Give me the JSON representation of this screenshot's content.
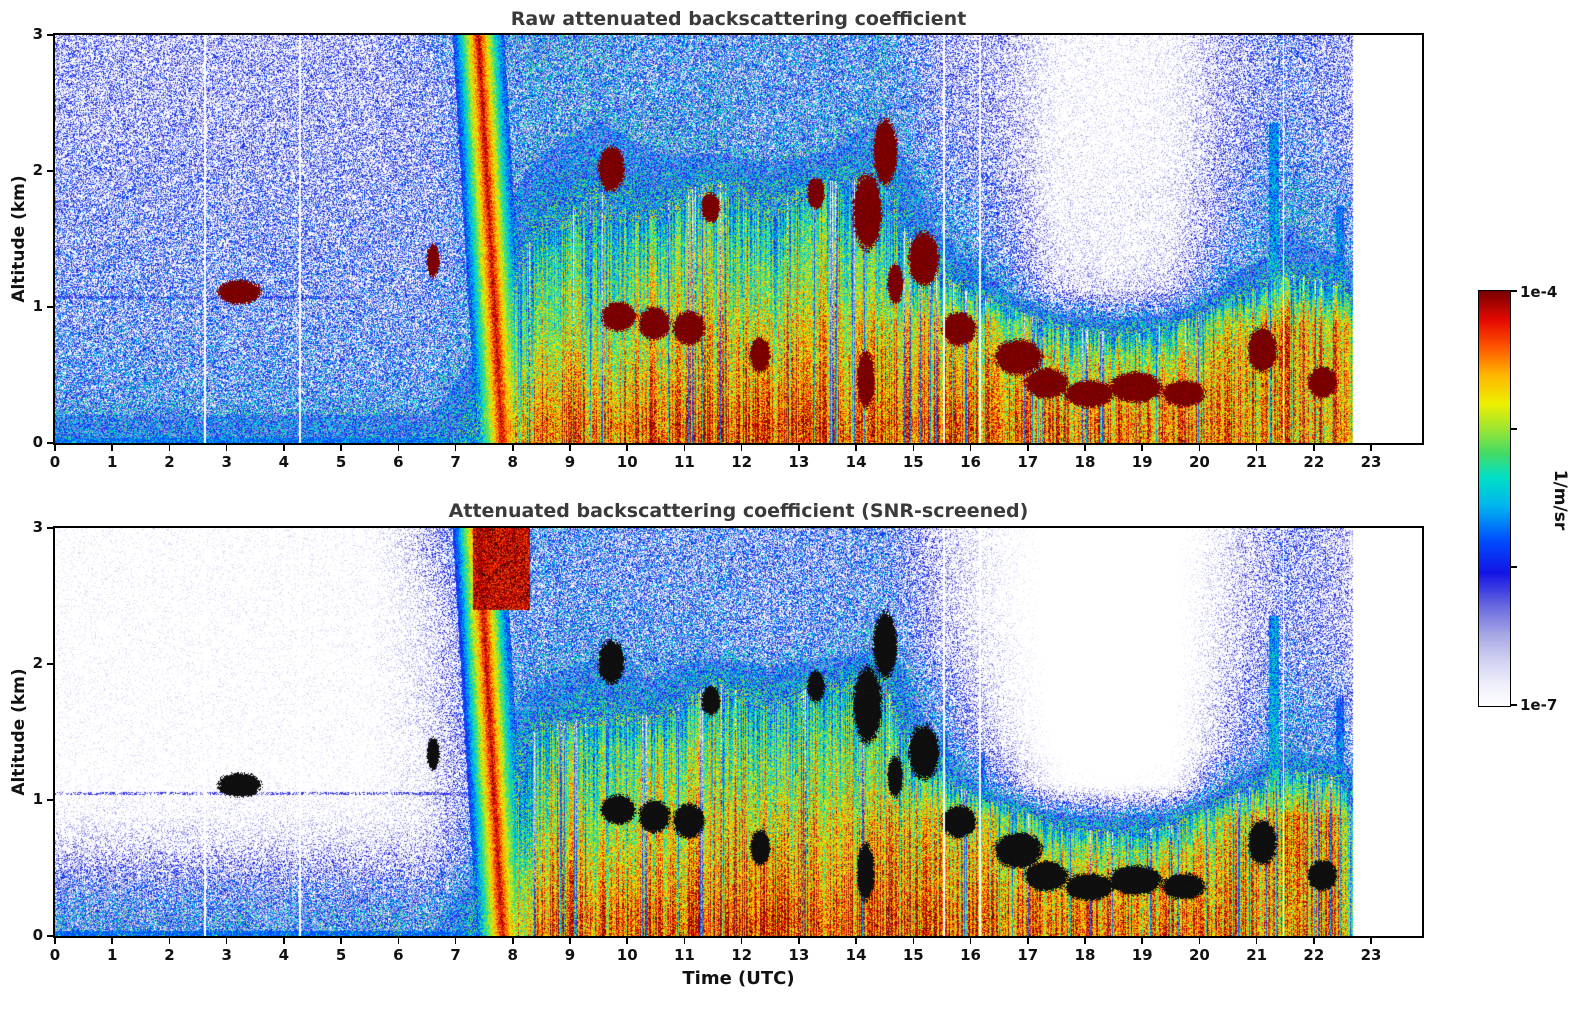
{
  "figure": {
    "background": "#ffffff",
    "text_color": "#1a1a1a",
    "title_color": "#3a3a3a"
  },
  "panels": [
    {
      "title": "Raw attenuated backscattering coefficient",
      "ylabel": "Altitude (km)",
      "xlabel": "",
      "x_ticks": [
        0,
        1,
        2,
        3,
        4,
        5,
        6,
        7,
        8,
        9,
        10,
        11,
        12,
        13,
        14,
        15,
        16,
        17,
        18,
        19,
        20,
        21,
        22,
        23
      ],
      "y_ticks": [
        0,
        1,
        2,
        3
      ]
    },
    {
      "title": "Attenuated backscattering coefficient (SNR-screened)",
      "ylabel": "Altitude (km)",
      "xlabel": "Time (UTC)",
      "x_ticks": [
        0,
        1,
        2,
        3,
        4,
        5,
        6,
        7,
        8,
        9,
        10,
        11,
        12,
        13,
        14,
        15,
        16,
        17,
        18,
        19,
        20,
        21,
        22,
        23
      ],
      "y_ticks": [
        0,
        1,
        2,
        3
      ]
    }
  ],
  "colorbar": {
    "top_label": "1e-4",
    "bottom_label": "1e-7",
    "units": "1/m/sr",
    "scale": "log",
    "stops": [
      {
        "t": 0.0,
        "c": "#ffffff"
      },
      {
        "t": 0.05,
        "c": "#f0f0fd"
      },
      {
        "t": 0.11,
        "c": "#d2d2f2"
      },
      {
        "t": 0.17,
        "c": "#a8a8e6"
      },
      {
        "t": 0.24,
        "c": "#6a6ae0"
      },
      {
        "t": 0.32,
        "c": "#1414e6"
      },
      {
        "t": 0.4,
        "c": "#0050ff"
      },
      {
        "t": 0.48,
        "c": "#00b4f0"
      },
      {
        "t": 0.55,
        "c": "#00e0c8"
      },
      {
        "t": 0.61,
        "c": "#46dc64"
      },
      {
        "t": 0.67,
        "c": "#a0e632"
      },
      {
        "t": 0.73,
        "c": "#f0f000"
      },
      {
        "t": 0.8,
        "c": "#ffb400"
      },
      {
        "t": 0.87,
        "c": "#ff5000"
      },
      {
        "t": 0.93,
        "c": "#e60a00"
      },
      {
        "t": 1.0,
        "c": "#7a0000"
      }
    ]
  },
  "chart_data": [
    {
      "type": "heatmap",
      "title": "Raw attenuated backscattering coefficient",
      "xlabel": "Time (UTC)",
      "ylabel": "Altitude (km)",
      "x_range": [
        0,
        23.89
      ],
      "y_range": [
        0,
        3
      ],
      "data_end_hour": 22.68,
      "value_scale": "log10 of attenuated backscatter (1/m/sr)",
      "value_range": [
        -7,
        -4
      ],
      "grid_hour_centers": "columns are hourly bins 0-23, rows are 0.25 km bins bottom to top",
      "values_log10": [
        [
          -5.9,
          -5.9,
          -5.9,
          -5.9,
          -5.9,
          -5.9,
          -5.9,
          -5.5,
          -4.4,
          -4.5,
          -4.4,
          -4.4,
          -4.3,
          -4.4,
          -4.4,
          -4.4,
          -4.5,
          -4.5,
          -4.5,
          -4.5,
          -4.5,
          -4.6,
          -4.5,
          -7.5
        ],
        [
          -6.2,
          -6.2,
          -6.2,
          -6.2,
          -6.2,
          -6.2,
          -6.2,
          -5.7,
          -4.6,
          -4.7,
          -4.6,
          -4.6,
          -4.5,
          -4.6,
          -4.5,
          -4.6,
          -4.6,
          -4.7,
          -4.7,
          -4.7,
          -4.6,
          -4.6,
          -4.6,
          -7.5
        ],
        [
          -6.3,
          -6.3,
          -6.3,
          -6.3,
          -6.3,
          -6.3,
          -6.3,
          -5.9,
          -4.8,
          -4.9,
          -4.8,
          -4.7,
          -4.7,
          -4.7,
          -4.6,
          -4.7,
          -4.8,
          -5.0,
          -5.0,
          -5.0,
          -4.7,
          -4.5,
          -4.6,
          -7.5
        ],
        [
          -6.4,
          -6.4,
          -6.4,
          -6.4,
          -6.4,
          -6.4,
          -6.4,
          -6.0,
          -5.0,
          -5.1,
          -4.9,
          -4.8,
          -4.9,
          -4.8,
          -4.8,
          -4.8,
          -5.0,
          -5.6,
          -5.8,
          -5.6,
          -4.9,
          -4.6,
          -4.7,
          -7.5
        ],
        [
          -6.45,
          -6.45,
          -6.45,
          -6.45,
          -6.45,
          -6.45,
          -6.45,
          -6.1,
          -5.1,
          -5.2,
          -5.0,
          -5.0,
          -5.1,
          -5.0,
          -5.1,
          -5.4,
          -5.9,
          -6.9,
          -7.1,
          -6.9,
          -5.8,
          -5.3,
          -5.5,
          -7.5
        ],
        [
          -6.5,
          -6.5,
          -6.5,
          -6.5,
          -6.5,
          -6.5,
          -6.5,
          -6.2,
          -5.3,
          -5.3,
          -5.2,
          -5.1,
          -5.3,
          -5.1,
          -5.2,
          -5.8,
          -6.3,
          -7.2,
          -7.4,
          -7.2,
          -6.3,
          -5.9,
          -6.0,
          -7.5
        ],
        [
          -6.55,
          -6.55,
          -6.55,
          -6.55,
          -6.55,
          -6.55,
          -6.5,
          -6.2,
          -5.6,
          -5.5,
          -5.5,
          -5.3,
          -5.5,
          -5.3,
          -5.4,
          -6.1,
          -6.5,
          -7.3,
          -7.4,
          -7.3,
          -6.5,
          -6.0,
          -6.2,
          -7.5
        ],
        [
          -6.6,
          -6.6,
          -6.6,
          -6.6,
          -6.6,
          -6.6,
          -6.55,
          -6.3,
          -5.8,
          -5.6,
          -5.8,
          -5.5,
          -5.7,
          -5.5,
          -5.5,
          -6.3,
          -6.6,
          -7.4,
          -7.4,
          -7.3,
          -6.6,
          -6.1,
          -6.3,
          -7.5
        ],
        [
          -6.65,
          -6.65,
          -6.65,
          -6.65,
          -6.65,
          -6.65,
          -6.6,
          -6.3,
          -6.0,
          -5.9,
          -6.0,
          -6.0,
          -6.1,
          -6.0,
          -5.8,
          -6.5,
          -6.7,
          -7.4,
          -7.5,
          -7.4,
          -6.7,
          -6.3,
          -6.5,
          -7.5
        ],
        [
          -6.7,
          -6.7,
          -6.7,
          -6.7,
          -6.7,
          -6.7,
          -6.6,
          -6.3,
          -6.1,
          -6.0,
          -6.1,
          -6.1,
          -6.2,
          -6.1,
          -6.0,
          -6.6,
          -6.8,
          -7.4,
          -7.5,
          -7.4,
          -6.8,
          -6.4,
          -6.6,
          -7.5
        ],
        [
          -6.7,
          -6.7,
          -6.7,
          -6.7,
          -6.7,
          -6.7,
          -6.6,
          -6.3,
          -6.1,
          -6.1,
          -6.2,
          -6.1,
          -6.2,
          -6.2,
          -6.1,
          -6.6,
          -6.8,
          -7.4,
          -7.5,
          -7.4,
          -6.8,
          -6.5,
          -6.6,
          -7.5
        ],
        [
          -6.75,
          -6.75,
          -6.75,
          -6.75,
          -6.75,
          -6.75,
          -6.5,
          -6.2,
          -6.0,
          -6.1,
          -6.2,
          -6.2,
          -6.2,
          -6.2,
          -6.1,
          -6.7,
          -6.8,
          -7.4,
          -7.5,
          -7.4,
          -6.8,
          -6.5,
          -6.7,
          -7.5
        ]
      ],
      "plume": {
        "t_at_surface": 7.82,
        "slope_h_per_km": -0.14,
        "halfwidth_h": 0.45,
        "core_value": -4.15,
        "edge_value": -6.05
      },
      "clouds": [
        [
          2.85,
          3.6,
          1.02,
          1.2
        ],
        [
          6.5,
          6.72,
          1.22,
          1.46
        ],
        [
          9.5,
          9.95,
          1.85,
          2.18
        ],
        [
          9.55,
          10.15,
          0.82,
          1.04
        ],
        [
          10.2,
          10.75,
          0.76,
          1.0
        ],
        [
          10.8,
          11.35,
          0.72,
          0.97
        ],
        [
          11.3,
          11.62,
          1.62,
          1.84
        ],
        [
          12.15,
          12.5,
          0.52,
          0.78
        ],
        [
          13.15,
          13.45,
          1.72,
          1.95
        ],
        [
          13.95,
          14.45,
          1.42,
          1.98
        ],
        [
          14.3,
          14.72,
          1.9,
          2.38
        ],
        [
          14.02,
          14.32,
          0.26,
          0.68
        ],
        [
          14.55,
          14.82,
          1.02,
          1.32
        ],
        [
          14.92,
          15.45,
          1.15,
          1.55
        ],
        [
          15.5,
          16.1,
          0.72,
          0.96
        ],
        [
          16.42,
          17.25,
          0.5,
          0.76
        ],
        [
          16.95,
          17.7,
          0.33,
          0.55
        ],
        [
          17.65,
          18.5,
          0.26,
          0.46
        ],
        [
          18.42,
          19.35,
          0.3,
          0.52
        ],
        [
          19.35,
          20.1,
          0.27,
          0.46
        ],
        [
          20.85,
          21.35,
          0.52,
          0.85
        ],
        [
          21.9,
          22.4,
          0.33,
          0.56
        ]
      ],
      "cloud_color": "#7a0000",
      "spikes": [
        [
          21.3,
          0.09,
          2.35,
          -5.7
        ],
        [
          22.45,
          0.07,
          1.75,
          -5.9
        ],
        [
          15.55,
          0.05,
          1.5,
          -6.0
        ],
        [
          16.2,
          0.05,
          1.35,
          -6.0
        ]
      ],
      "gaps_hours": [
        2.62,
        4.28,
        15.53,
        16.17,
        21.47
      ],
      "hot_regions": [],
      "stripes": false,
      "dotted_line": {
        "alt_km": 1.07,
        "t_end": 5.4
      },
      "surface_line_value": -5.8
    },
    {
      "type": "heatmap",
      "title": "Attenuated backscattering coefficient (SNR-screened)",
      "xlabel": "Time (UTC)",
      "ylabel": "Altitude (km)",
      "x_range": [
        0,
        23.89
      ],
      "y_range": [
        0,
        3
      ],
      "data_end_hour": 22.68,
      "value_scale": "log10 of attenuated backscatter (1/m/sr)",
      "value_range": [
        -7,
        -4
      ],
      "grid_hour_centers": "columns are hourly bins 0-23, rows are 0.25 km bins bottom to top",
      "values_log10": [
        [
          -6.1,
          -6.1,
          -6.1,
          -6.1,
          -6.1,
          -6.1,
          -6.1,
          -5.6,
          -4.4,
          -4.5,
          -4.4,
          -4.4,
          -4.3,
          -4.4,
          -4.4,
          -4.4,
          -4.5,
          -4.5,
          -4.5,
          -4.5,
          -4.5,
          -4.6,
          -4.5,
          -7.8
        ],
        [
          -6.5,
          -6.5,
          -6.5,
          -6.5,
          -6.5,
          -6.5,
          -6.5,
          -5.8,
          -4.6,
          -4.7,
          -4.6,
          -4.6,
          -4.5,
          -4.6,
          -4.5,
          -4.6,
          -4.6,
          -4.7,
          -4.7,
          -4.7,
          -4.6,
          -4.6,
          -4.6,
          -7.8
        ],
        [
          -7.0,
          -7.0,
          -7.0,
          -7.0,
          -7.0,
          -7.0,
          -7.0,
          -6.1,
          -4.8,
          -4.9,
          -4.8,
          -4.7,
          -4.7,
          -4.7,
          -4.6,
          -4.7,
          -4.8,
          -5.0,
          -5.1,
          -5.0,
          -4.7,
          -4.5,
          -4.6,
          -7.8
        ],
        [
          -7.4,
          -7.4,
          -7.4,
          -7.4,
          -7.4,
          -7.4,
          -7.2,
          -6.2,
          -5.0,
          -5.1,
          -4.9,
          -4.8,
          -4.9,
          -4.8,
          -4.8,
          -4.8,
          -5.0,
          -5.8,
          -6.0,
          -5.8,
          -4.9,
          -4.6,
          -4.7,
          -7.8
        ],
        [
          -7.6,
          -7.6,
          -7.6,
          -7.6,
          -7.6,
          -7.6,
          -7.3,
          -6.3,
          -5.1,
          -5.2,
          -5.0,
          -5.0,
          -5.1,
          -5.0,
          -5.1,
          -5.4,
          -6.4,
          -7.6,
          -7.8,
          -7.6,
          -6.0,
          -5.3,
          -5.5,
          -7.8
        ],
        [
          -7.6,
          -7.6,
          -7.6,
          -7.6,
          -7.6,
          -7.6,
          -7.3,
          -6.3,
          -5.3,
          -5.3,
          -5.2,
          -5.1,
          -5.3,
          -5.1,
          -5.2,
          -5.9,
          -7.0,
          -7.8,
          -7.9,
          -7.8,
          -6.7,
          -6.0,
          -6.2,
          -7.8
        ],
        [
          -7.6,
          -7.6,
          -7.6,
          -7.6,
          -7.6,
          -7.6,
          -7.2,
          -6.3,
          -5.7,
          -5.6,
          -5.6,
          -5.3,
          -5.5,
          -5.3,
          -5.4,
          -6.3,
          -7.2,
          -7.9,
          -7.9,
          -7.8,
          -6.9,
          -6.1,
          -6.4,
          -7.8
        ],
        [
          -7.6,
          -7.6,
          -7.6,
          -7.6,
          -7.6,
          -7.6,
          -7.2,
          -6.3,
          -6.0,
          -5.8,
          -6.0,
          -5.6,
          -5.8,
          -5.6,
          -5.6,
          -6.5,
          -7.3,
          -7.9,
          -7.9,
          -7.9,
          -7.0,
          -6.3,
          -6.5,
          -7.8
        ],
        [
          -7.6,
          -7.6,
          -7.6,
          -7.6,
          -7.6,
          -7.6,
          -7.2,
          -6.3,
          -6.2,
          -6.1,
          -6.2,
          -6.2,
          -6.3,
          -6.2,
          -6.0,
          -6.8,
          -7.4,
          -7.9,
          -7.9,
          -7.9,
          -7.1,
          -6.5,
          -6.7,
          -7.8
        ],
        [
          -7.6,
          -7.6,
          -7.6,
          -7.6,
          -7.6,
          -7.6,
          -7.2,
          -6.2,
          -6.3,
          -6.2,
          -6.3,
          -6.3,
          -6.4,
          -6.3,
          -6.2,
          -6.9,
          -7.5,
          -7.9,
          -7.9,
          -7.9,
          -7.1,
          -6.6,
          -6.8,
          -7.8
        ],
        [
          -7.6,
          -7.6,
          -7.6,
          -7.6,
          -7.6,
          -7.6,
          -7.1,
          -6.2,
          -6.3,
          -6.3,
          -6.4,
          -6.3,
          -6.4,
          -6.4,
          -6.3,
          -6.9,
          -7.5,
          -7.9,
          -7.9,
          -7.9,
          -7.2,
          -6.6,
          -6.8,
          -7.8
        ],
        [
          -7.6,
          -7.6,
          -7.6,
          -7.6,
          -7.6,
          -7.6,
          -6.9,
          -6.1,
          -6.2,
          -6.3,
          -6.4,
          -6.4,
          -6.4,
          -6.4,
          -6.3,
          -7.0,
          -7.5,
          -7.9,
          -7.9,
          -7.9,
          -7.2,
          -6.6,
          -6.9,
          -7.8
        ]
      ],
      "plume": {
        "t_at_surface": 7.82,
        "slope_h_per_km": -0.14,
        "halfwidth_h": 0.45,
        "core_value": -4.15,
        "edge_value": -6.05
      },
      "clouds": [
        [
          2.85,
          3.6,
          1.02,
          1.2
        ],
        [
          6.5,
          6.72,
          1.22,
          1.46
        ],
        [
          9.5,
          9.95,
          1.85,
          2.18
        ],
        [
          9.55,
          10.15,
          0.82,
          1.04
        ],
        [
          10.2,
          10.75,
          0.76,
          1.0
        ],
        [
          10.8,
          11.35,
          0.72,
          0.97
        ],
        [
          11.3,
          11.62,
          1.62,
          1.84
        ],
        [
          12.15,
          12.5,
          0.52,
          0.78
        ],
        [
          13.15,
          13.45,
          1.72,
          1.95
        ],
        [
          13.95,
          14.45,
          1.42,
          1.98
        ],
        [
          14.3,
          14.72,
          1.9,
          2.38
        ],
        [
          14.02,
          14.32,
          0.26,
          0.68
        ],
        [
          14.55,
          14.82,
          1.02,
          1.32
        ],
        [
          14.92,
          15.45,
          1.15,
          1.55
        ],
        [
          15.5,
          16.1,
          0.72,
          0.96
        ],
        [
          16.42,
          17.25,
          0.5,
          0.76
        ],
        [
          16.95,
          17.7,
          0.33,
          0.55
        ],
        [
          17.65,
          18.5,
          0.26,
          0.46
        ],
        [
          18.42,
          19.35,
          0.3,
          0.52
        ],
        [
          19.35,
          20.1,
          0.27,
          0.46
        ],
        [
          20.85,
          21.35,
          0.52,
          0.85
        ],
        [
          21.9,
          22.4,
          0.33,
          0.56
        ]
      ],
      "cloud_color": "#0f0f0f",
      "spikes": [
        [
          21.3,
          0.09,
          2.35,
          -5.6
        ],
        [
          22.45,
          0.07,
          1.75,
          -5.9
        ],
        [
          15.55,
          0.05,
          1.5,
          -6.0
        ],
        [
          16.2,
          0.05,
          1.35,
          -6.0
        ]
      ],
      "gaps_hours": [
        2.62,
        4.28,
        15.53,
        16.17,
        21.47
      ],
      "hot_regions": [
        [
          7.3,
          8.3,
          2.4,
          3.02
        ]
      ],
      "stripes": true,
      "dotted_line": {
        "alt_km": 1.05,
        "t_end": 7.2
      },
      "surface_line_value": -5.8
    }
  ]
}
